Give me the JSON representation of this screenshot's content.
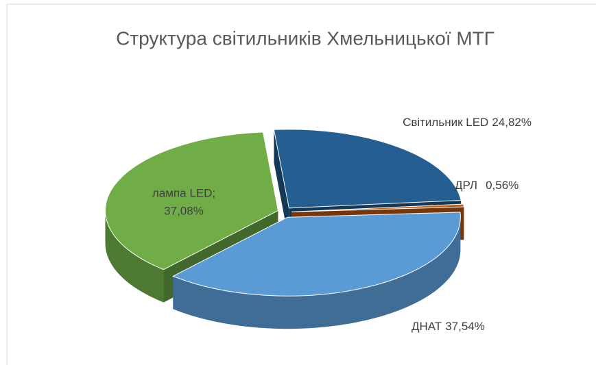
{
  "chart_data": {
    "type": "pie3d",
    "title": "Структура світильників  Хмельницької МТГ",
    "categories": [
      "Світильник LED",
      "ДРЛ",
      "ДНАТ",
      "лампа LED;"
    ],
    "values": [
      24.82,
      0.56,
      37.54,
      37.08
    ],
    "value_labels": [
      "24,82%",
      "0,56%",
      "37,54%",
      "37,08%"
    ],
    "colors": [
      "#255e91",
      "#c55a11",
      "#5b9bd5",
      "#70ad47"
    ]
  }
}
